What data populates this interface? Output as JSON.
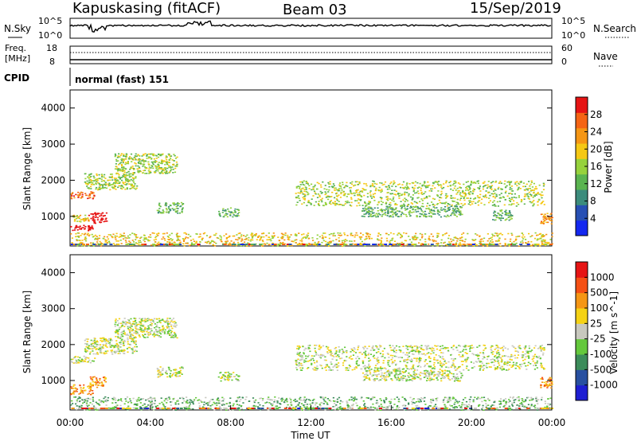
{
  "header": {
    "site": "Kapuskasing (fitACF)",
    "beam": "Beam 03",
    "date": "15/Sep/2019"
  },
  "strip": {
    "nsky_label": "N.Sky",
    "nsearch_label": "N.Search",
    "freq_label": "Freq.",
    "freq_unit": "[MHz]",
    "nave_label": "Nave",
    "cpid_label": "CPID",
    "cpid_value": "normal (fast) 151",
    "noise_top_left": "10^5",
    "noise_bot_left": "10^0",
    "noise_top_right": "10^5",
    "noise_bot_right": "10^0",
    "freq_top": "18",
    "freq_bot": "8",
    "nave_top": "60",
    "nave_bot": "0"
  },
  "chart_data": [
    {
      "type": "heatmap",
      "name": "power",
      "ylabel": "Slant Range [km]",
      "colorbar_label": "Power [dB]",
      "yticks": [
        1000,
        2000,
        3000,
        4000
      ],
      "ylim": [
        180,
        4500
      ],
      "xlim": [
        0,
        24
      ],
      "colorbar_ticks": [
        4,
        8,
        12,
        16,
        20,
        24,
        28
      ],
      "colorbar_colors": [
        "#1428f0",
        "#2850b4",
        "#3c8c7c",
        "#5ab450",
        "#96d23c",
        "#f5c814",
        "#f59614",
        "#f56414",
        "#e61414"
      ],
      "regions": [
        {
          "t0": 0.0,
          "t1": 1.1,
          "r0": 620,
          "r1": 780,
          "level": 9
        },
        {
          "t0": 0.9,
          "t1": 1.8,
          "r0": 820,
          "r1": 1120,
          "level": 9
        },
        {
          "t0": 0.1,
          "t1": 0.9,
          "r0": 850,
          "r1": 1050,
          "level": 5
        },
        {
          "t0": 0.0,
          "t1": 1.2,
          "r0": 1500,
          "r1": 1700,
          "level": 7
        },
        {
          "t0": 0.7,
          "t1": 3.3,
          "r0": 1750,
          "r1": 2200,
          "level": 4
        },
        {
          "t0": 2.2,
          "t1": 5.3,
          "r0": 2200,
          "r1": 2750,
          "level": 4
        },
        {
          "t0": 4.3,
          "t1": 5.6,
          "r0": 1100,
          "r1": 1400,
          "level": 3
        },
        {
          "t0": 7.3,
          "t1": 8.4,
          "r0": 1000,
          "r1": 1250,
          "level": 3
        },
        {
          "t0": 11.2,
          "t1": 23.6,
          "r0": 1300,
          "r1": 2000,
          "level": 4
        },
        {
          "t0": 14.5,
          "t1": 19.5,
          "r0": 1000,
          "r1": 1300,
          "level": 3
        },
        {
          "t0": 21.0,
          "t1": 22.0,
          "r0": 900,
          "r1": 1200,
          "level": 3
        },
        {
          "t0": 23.4,
          "t1": 24.0,
          "r0": 800,
          "r1": 1100,
          "level": 6
        },
        {
          "t0": 0.0,
          "t1": 24.0,
          "r0": 190,
          "r1": 560,
          "level": 5
        }
      ]
    },
    {
      "type": "heatmap",
      "name": "velocity",
      "ylabel": "Slant Range [km]",
      "colorbar_label": "Velocity [m s^-1]",
      "yticks": [
        1000,
        2000,
        3000,
        4000
      ],
      "ylim": [
        180,
        4500
      ],
      "xlim": [
        0,
        24
      ],
      "xticks": [
        "00:00",
        "04:00",
        "08:00",
        "12:00",
        "16:00",
        "20:00",
        "00:00"
      ],
      "xlabel": "Time UT",
      "colorbar_ticks": [
        "1000",
        "500",
        "100",
        "25",
        "-25",
        "-100",
        "-500",
        "-1000"
      ],
      "colorbar_colors": [
        "#1e1ed2",
        "#2850a0",
        "#3c8c5a",
        "#64c83c",
        "#c8c8be",
        "#f5d214",
        "#f59614",
        "#f55014",
        "#e61414"
      ],
      "regions": [
        {
          "t0": 0.0,
          "t1": 1.1,
          "r0": 620,
          "r1": 900,
          "level": 6
        },
        {
          "t0": 0.9,
          "t1": 1.8,
          "r0": 820,
          "r1": 1120,
          "level": 6
        },
        {
          "t0": 0.0,
          "t1": 1.2,
          "r0": 1500,
          "r1": 1700,
          "level": 4
        },
        {
          "t0": 0.7,
          "t1": 3.3,
          "r0": 1750,
          "r1": 2200,
          "level": 4
        },
        {
          "t0": 2.2,
          "t1": 5.3,
          "r0": 2200,
          "r1": 2750,
          "level": 4
        },
        {
          "t0": 4.3,
          "t1": 5.6,
          "r0": 1100,
          "r1": 1400,
          "level": 4
        },
        {
          "t0": 7.3,
          "t1": 8.4,
          "r0": 1000,
          "r1": 1250,
          "level": 4
        },
        {
          "t0": 11.2,
          "t1": 23.6,
          "r0": 1300,
          "r1": 2000,
          "level": 4
        },
        {
          "t0": 14.5,
          "t1": 19.5,
          "r0": 1000,
          "r1": 1300,
          "level": 4
        },
        {
          "t0": 23.4,
          "t1": 24.0,
          "r0": 800,
          "r1": 1100,
          "level": 6
        },
        {
          "t0": 0.0,
          "t1": 24.0,
          "r0": 190,
          "r1": 560,
          "level": 3
        }
      ]
    }
  ]
}
